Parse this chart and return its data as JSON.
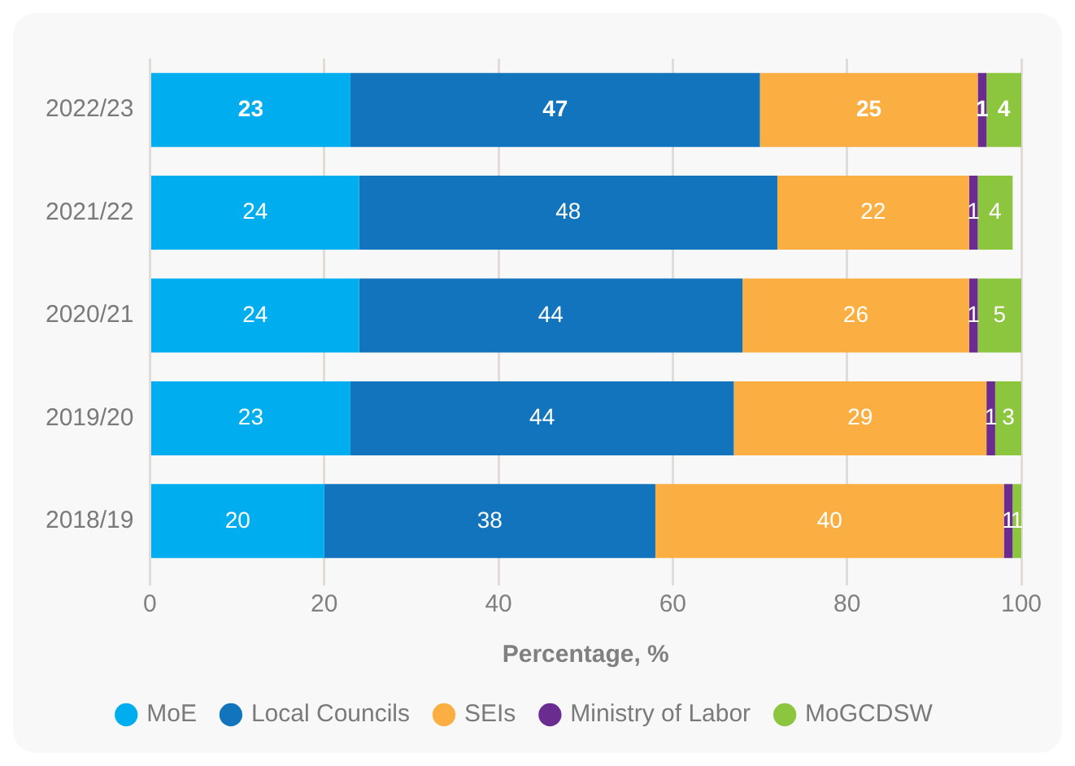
{
  "chart_data": {
    "type": "bar",
    "orientation": "horizontal",
    "stacked": true,
    "xlabel": "Percentage, %",
    "categories": [
      "2022/23",
      "2021/22",
      "2020/21",
      "2019/20",
      "2018/19"
    ],
    "series": [
      {
        "name": "MoE",
        "color": "#00adee",
        "values": [
          23,
          24,
          24,
          23,
          20
        ]
      },
      {
        "name": "Local Councils",
        "color": "#1174bc",
        "values": [
          47,
          48,
          44,
          44,
          38
        ]
      },
      {
        "name": "SEIs",
        "color": "#fbae42",
        "values": [
          25,
          22,
          26,
          29,
          40
        ]
      },
      {
        "name": "Ministry of Labor",
        "color": "#6a2c91",
        "values": [
          1,
          1,
          1,
          1,
          1
        ]
      },
      {
        "name": "MoGCDSW",
        "color": "#8cc63f",
        "values": [
          4,
          4,
          5,
          3,
          1
        ]
      }
    ],
    "xlim": [
      0,
      100
    ],
    "xticks": [
      0,
      20,
      40,
      60,
      80,
      100
    ],
    "grid": "x",
    "legend": "bottom",
    "marker": "circle",
    "data_labels": true
  }
}
